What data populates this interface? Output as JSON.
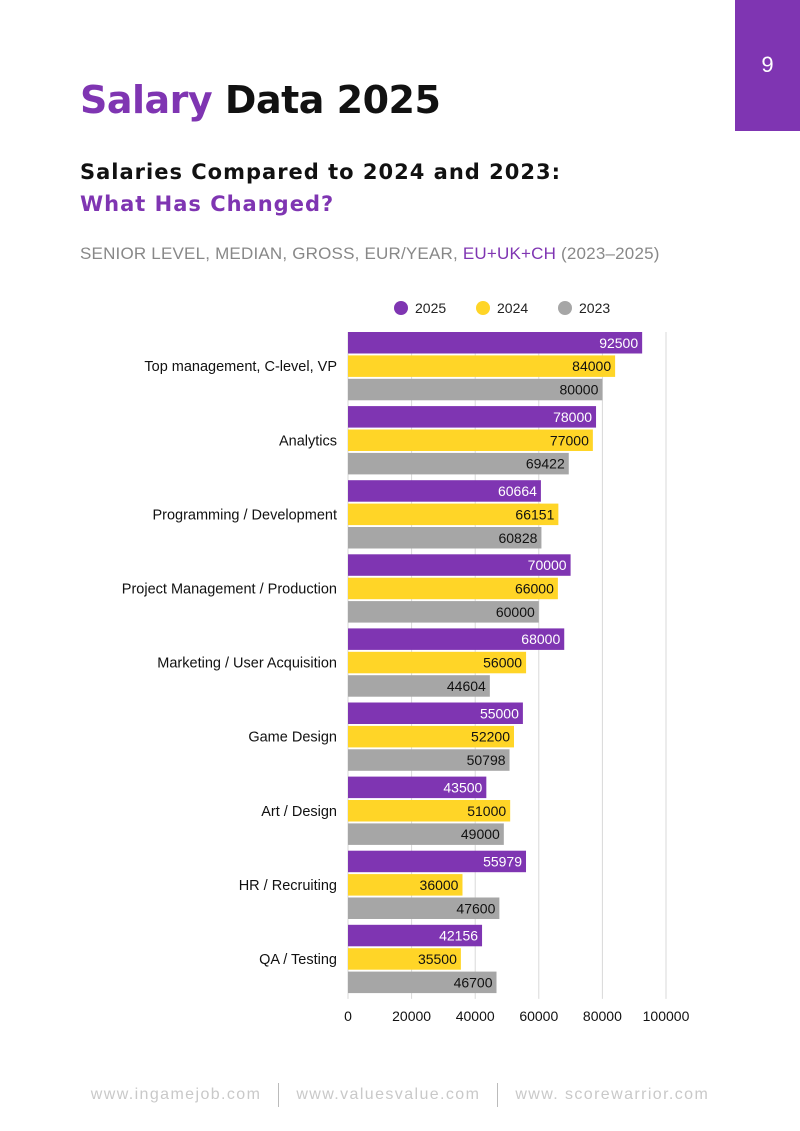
{
  "page_number": "9",
  "title": {
    "accent": "Salary",
    "rest": " Data 2025"
  },
  "subtitle": {
    "line1": "Salaries Compared to 2024 and 2023:",
    "line2": "What Has Changed?"
  },
  "meta": {
    "prefix": "SENIOR LEVEL, MEDIAN, GROSS, EUR/YEAR, ",
    "region": "EU+UK+CH",
    "suffix": " (2023–2025)"
  },
  "colors": {
    "accent": "#7f35b2",
    "s2025": "#7f35b2",
    "s2024": "#ffd527",
    "s2023": "#a6a6a6"
  },
  "chart_data": {
    "type": "bar",
    "orientation": "horizontal",
    "categories": [
      "Top management, C-level, VP",
      "Analytics",
      "Programming / Development",
      "Project Management / Production",
      "Marketing / User Acquisition",
      "Game Design",
      "Art / Design",
      "HR / Recruiting",
      "QA / Testing"
    ],
    "series": [
      {
        "name": "2025",
        "color": "#7f35b2",
        "values": [
          92500,
          78000,
          60664,
          70000,
          68000,
          55000,
          43500,
          55979,
          42156
        ]
      },
      {
        "name": "2024",
        "color": "#ffd527",
        "values": [
          84000,
          77000,
          66151,
          66000,
          56000,
          52200,
          51000,
          36000,
          35500
        ]
      },
      {
        "name": "2023",
        "color": "#a6a6a6",
        "values": [
          80000,
          69422,
          60828,
          60000,
          44604,
          50798,
          49000,
          47600,
          46700
        ]
      }
    ],
    "xlim": [
      0,
      100000
    ],
    "xticks": [
      0,
      20000,
      40000,
      60000,
      80000,
      100000
    ],
    "grid": true,
    "legend": "top"
  },
  "footer": {
    "links": [
      "www.ingamejob.com",
      "www.valuesvalue.com",
      "www. scorewarrior.com"
    ]
  }
}
